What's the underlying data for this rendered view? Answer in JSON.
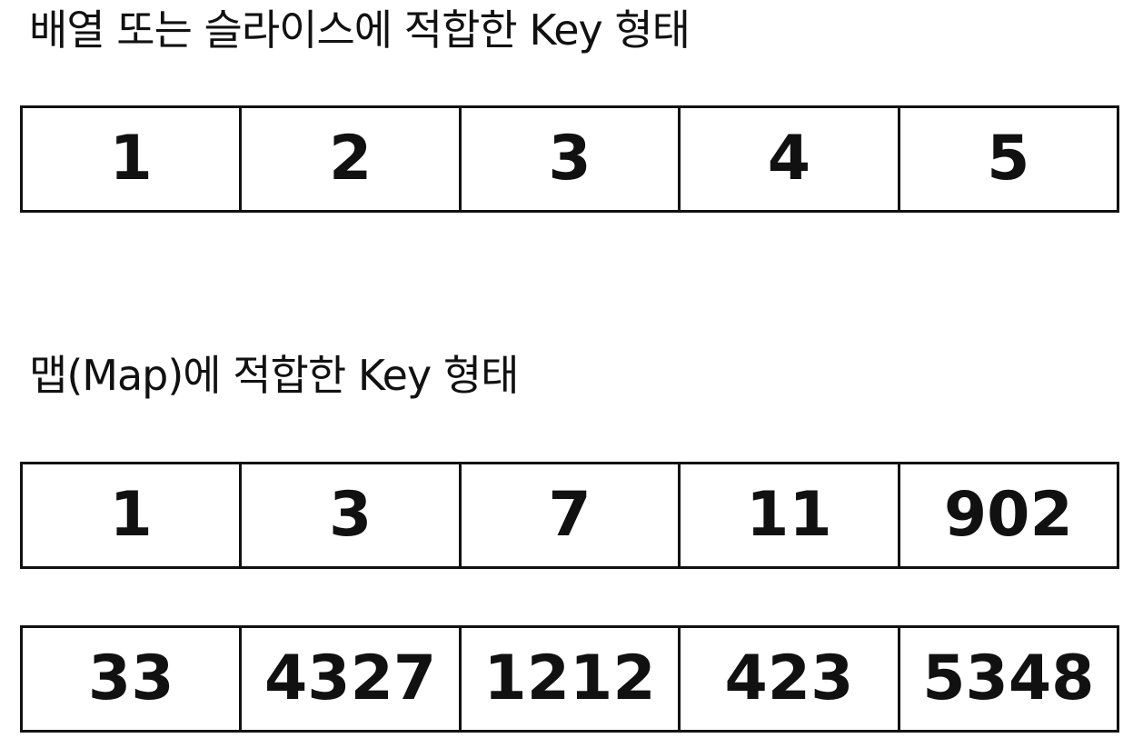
{
  "array_section": {
    "heading": "배열 또는 슬라이스에 적합한 Key 형태",
    "keys": [
      "1",
      "2",
      "3",
      "4",
      "5"
    ]
  },
  "map_section": {
    "heading": "맵(Map)에 적합한 Key 형태",
    "rows": [
      [
        "1",
        "3",
        "7",
        "11",
        "902"
      ],
      [
        "33",
        "4327",
        "1212",
        "423",
        "5348"
      ]
    ]
  }
}
